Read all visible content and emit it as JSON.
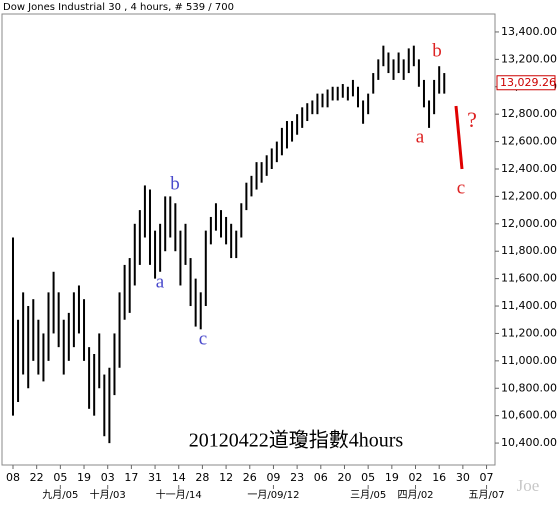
{
  "chart_data": {
    "type": "range-bar",
    "title": "Dow Jones Industrial 30 , 4 hours, # 539 / 700",
    "color": "#000000",
    "x": [
      0,
      3,
      6,
      9,
      12,
      15,
      18,
      21,
      24,
      27,
      30,
      33,
      36,
      39,
      42,
      45,
      48,
      51,
      54,
      57,
      60,
      63,
      66,
      69,
      72,
      75,
      78,
      81,
      84,
      87,
      90,
      93,
      96,
      99,
      102,
      105,
      108,
      111,
      114,
      117,
      120,
      123,
      126,
      129,
      132,
      135,
      138,
      141,
      144,
      147,
      150,
      153,
      156,
      159,
      162,
      165,
      168,
      171,
      174,
      177,
      180,
      183,
      186,
      189,
      192,
      195,
      198,
      201,
      204,
      207,
      210,
      213,
      216,
      219,
      222,
      225,
      228,
      231,
      234,
      237,
      240,
      243,
      246,
      249,
      252,
      255
    ],
    "high": [
      11900,
      11300,
      11500,
      11400,
      11450,
      11300,
      11200,
      11500,
      11650,
      11500,
      11300,
      11350,
      11500,
      11550,
      11450,
      11100,
      11050,
      11200,
      10900,
      10950,
      11200,
      11500,
      11700,
      11750,
      12000,
      12100,
      12280,
      12250,
      11950,
      12000,
      12200,
      12200,
      12150,
      11950,
      12000,
      11750,
      11600,
      11500,
      11950,
      12050,
      12150,
      12100,
      12050,
      12000,
      11950,
      12150,
      12300,
      12350,
      12450,
      12450,
      12500,
      12550,
      12600,
      12700,
      12750,
      12750,
      12800,
      12850,
      12880,
      12900,
      12950,
      12950,
      12980,
      13000,
      13000,
      13020,
      13000,
      13050,
      13000,
      12900,
      12950,
      13100,
      13200,
      13300,
      13250,
      13200,
      13250,
      13200,
      13280,
      13300,
      13200,
      13050,
      12900,
      13050,
      13150,
      13100
    ],
    "low": [
      10600,
      10700,
      10900,
      10800,
      11000,
      10900,
      10850,
      11000,
      11200,
      11100,
      10900,
      11000,
      11100,
      11200,
      11000,
      10650,
      10600,
      10800,
      10450,
      10400,
      10750,
      10950,
      11300,
      11350,
      11550,
      11700,
      11900,
      11700,
      11600,
      11650,
      11800,
      11900,
      11800,
      11550,
      11700,
      11400,
      11250,
      11230,
      11400,
      11850,
      11950,
      11900,
      11850,
      11750,
      11750,
      11900,
      12100,
      12200,
      12250,
      12300,
      12350,
      12400,
      12450,
      12500,
      12550,
      12600,
      12650,
      12700,
      12750,
      12800,
      12800,
      12850,
      12850,
      12900,
      12900,
      12920,
      12900,
      12930,
      12850,
      12730,
      12800,
      12950,
      13050,
      13150,
      13100,
      13050,
      13100,
      13050,
      13100,
      13150,
      13000,
      12850,
      12700,
      12800,
      12950,
      12950
    ],
    "xlim": [
      -6.5,
      285
    ],
    "xticks": [
      {
        "value": 0,
        "label": "08"
      },
      {
        "value": 14,
        "label": "22"
      },
      {
        "value": 28,
        "label": "05"
      },
      {
        "value": 42,
        "label": "19"
      },
      {
        "value": 56,
        "label": "03"
      },
      {
        "value": 70,
        "label": "17"
      },
      {
        "value": 84,
        "label": "31"
      },
      {
        "value": 98,
        "label": "14"
      },
      {
        "value": 112,
        "label": "28"
      },
      {
        "value": 126,
        "label": "12"
      },
      {
        "value": 140,
        "label": "26"
      },
      {
        "value": 154,
        "label": "09"
      },
      {
        "value": 168,
        "label": "23"
      },
      {
        "value": 182,
        "label": "06"
      },
      {
        "value": 196,
        "label": "20"
      },
      {
        "value": 210,
        "label": "05"
      },
      {
        "value": 224,
        "label": "19"
      },
      {
        "value": 238,
        "label": "02"
      },
      {
        "value": 252,
        "label": "16"
      },
      {
        "value": 266,
        "label": "30"
      },
      {
        "value": 280,
        "label": "07"
      }
    ],
    "xticks_major": [
      {
        "value": 28,
        "label": "九月/05"
      },
      {
        "value": 56,
        "label": "十月/03"
      },
      {
        "value": 98,
        "label": "十一月/14"
      },
      {
        "value": 154,
        "label": "一月/09/12"
      },
      {
        "value": 210,
        "label": "三月/05"
      },
      {
        "value": 238,
        "label": "四月/02"
      },
      {
        "value": 280,
        "label": "五月/07"
      }
    ],
    "ylim": [
      10240,
      13531
    ],
    "yticks": [
      {
        "value": 10400,
        "label": "10,400.00"
      },
      {
        "value": 10600,
        "label": "10,600.00"
      },
      {
        "value": 10800,
        "label": "10,800.00"
      },
      {
        "value": 11000,
        "label": "11,000.00"
      },
      {
        "value": 11200,
        "label": "11,200.00"
      },
      {
        "value": 11400,
        "label": "11,400.00"
      },
      {
        "value": 11600,
        "label": "11,600.00"
      },
      {
        "value": 11800,
        "label": "11,800.00"
      },
      {
        "value": 12000,
        "label": "12,000.00"
      },
      {
        "value": 12200,
        "label": "12,200.00"
      },
      {
        "value": 12400,
        "label": "12,400.00"
      },
      {
        "value": 12600,
        "label": "12,600.00"
      },
      {
        "value": 12800,
        "label": "12,800.00"
      },
      {
        "value": 13000,
        "label": "13,000.00"
      },
      {
        "value": 13200,
        "label": "13,200.00"
      },
      {
        "value": 13400,
        "label": "13,400.00"
      }
    ],
    "last": {
      "value": 13029.26,
      "label": "13,029.26",
      "color": "#cc0000"
    },
    "annotations": [
      {
        "text": "a",
        "color": "#4a4acc"
      },
      {
        "text": "b",
        "color": "#4a4acc"
      },
      {
        "text": "c",
        "color": "#4a4acc"
      },
      {
        "text": "a",
        "color": "#dd2222"
      },
      {
        "text": "b",
        "color": "#dd2222"
      },
      {
        "text": "c",
        "color": "#dd2222"
      },
      {
        "text": "?",
        "color": "#dd2222"
      },
      {
        "text": "20120422道瓊指數4hours",
        "color": "#000000"
      },
      {
        "text": "Joe",
        "color": "#c8c8c8"
      }
    ]
  }
}
